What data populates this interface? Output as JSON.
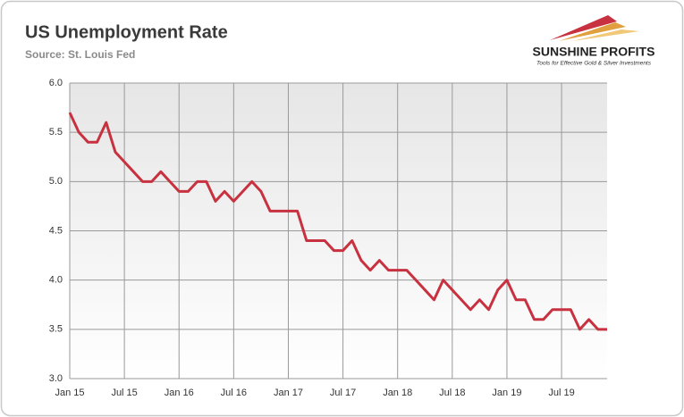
{
  "chart_data": {
    "type": "line",
    "title": "US Unemployment Rate",
    "subtitle": "Source: St. Louis Fed",
    "categories": [
      "Jan 15",
      null,
      null,
      null,
      null,
      null,
      "Jul 15",
      null,
      null,
      null,
      null,
      null,
      "Jan 16",
      null,
      null,
      null,
      null,
      null,
      "Jul 16",
      null,
      null,
      null,
      null,
      null,
      "Jan 17",
      null,
      null,
      null,
      null,
      null,
      "Jul 17",
      null,
      null,
      null,
      null,
      null,
      "Jan 18",
      null,
      null,
      null,
      null,
      null,
      "Jul 18",
      null,
      null,
      null,
      null,
      null,
      "Jan 19",
      null,
      null,
      null,
      null,
      null,
      "Jul 19",
      null,
      null,
      null,
      null,
      null
    ],
    "series": [
      {
        "name": "US Unemployment Rate",
        "color": "#c8313f",
        "values": [
          5.7,
          5.5,
          5.4,
          5.4,
          5.6,
          5.3,
          5.2,
          5.1,
          5.0,
          5.0,
          5.1,
          5.0,
          4.9,
          4.9,
          5.0,
          5.0,
          4.8,
          4.9,
          4.8,
          4.9,
          5.0,
          4.9,
          4.7,
          4.7,
          4.7,
          4.7,
          4.4,
          4.4,
          4.4,
          4.3,
          4.3,
          4.4,
          4.2,
          4.1,
          4.2,
          4.1,
          4.1,
          4.1,
          4.0,
          3.9,
          3.8,
          4.0,
          3.9,
          3.8,
          3.7,
          3.8,
          3.7,
          3.9,
          4.0,
          3.8,
          3.8,
          3.6,
          3.6,
          3.7,
          3.7,
          3.7,
          3.5,
          3.6,
          3.5,
          3.5
        ]
      }
    ],
    "ylim": [
      3.0,
      6.0
    ],
    "yticks": [
      {
        "value": 3.0,
        "label": "3.0"
      },
      3.5,
      {
        "value": 4.0,
        "label": "4.0"
      },
      4.5,
      {
        "value": 5.0,
        "label": "5.0"
      },
      5.5,
      {
        "value": 6.0,
        "label": "6.0"
      }
    ],
    "grid": true
  },
  "logo": {
    "name": "SUNSHINE PROFITS",
    "tagline": "Tools for Effective Gold & Silver Investments"
  }
}
